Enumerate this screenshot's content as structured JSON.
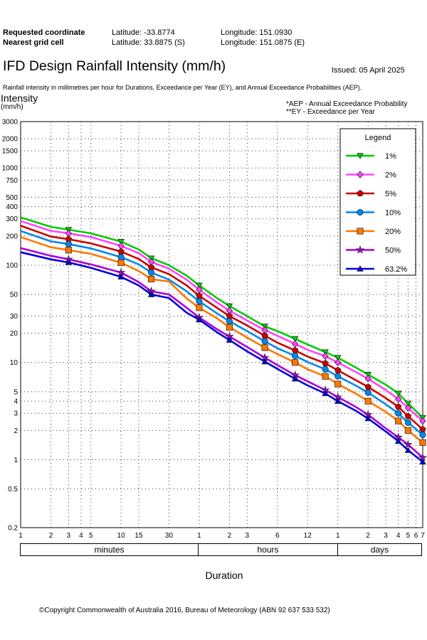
{
  "header": {
    "requested_label": "Requested coordinate",
    "requested_lat": "Latitude:  -33.8774",
    "requested_lon": "Longitude:  151.0930",
    "nearest_label": "Nearest grid cell",
    "nearest_lat": "Latitude:  33.8875 (S)",
    "nearest_lon": "Longitude:  151.0875 (E)"
  },
  "title": "IFD Design Rainfall Intensity (mm/h)",
  "issued": "Issued: 05 April 2025",
  "subtitle": "Rainfall intensity in millimetres per hour for Durations, Exceedance per Year (EY), and Annual Exceedance Probabilities (AEP).",
  "notes": [
    "*AEP - Annual Exceedance Probability",
    "**EY - Exceedance per Year"
  ],
  "duration_units": [
    "minutes",
    "hours",
    "days"
  ],
  "copyright": "©Copyright Commonwealth of Australia 2016, Bureau of Meteorology (ABN 92 637 533 532)",
  "chart_data": {
    "type": "line",
    "ylabel": "Intensity",
    "yunit": "(mm/h)",
    "xlabel": "Duration",
    "y_scale": "log",
    "x_scale": "log",
    "ylim": [
      0.2,
      3000
    ],
    "xlim_minutes": [
      1,
      10080
    ],
    "y_ticks": [
      3000,
      2000,
      1500,
      1000,
      750,
      500,
      400,
      300,
      200,
      100,
      50,
      30,
      20,
      10,
      5,
      4,
      3,
      2,
      1,
      0.5,
      0.2
    ],
    "x_ticks": [
      {
        "minutes": 1,
        "label": "1"
      },
      {
        "minutes": 2,
        "label": "2"
      },
      {
        "minutes": 3,
        "label": "3"
      },
      {
        "minutes": 4,
        "label": "4"
      },
      {
        "minutes": 5,
        "label": "5"
      },
      {
        "minutes": 10,
        "label": "10"
      },
      {
        "minutes": 15,
        "label": "15"
      },
      {
        "minutes": 30,
        "label": "30"
      },
      {
        "minutes": 60,
        "label": "1"
      },
      {
        "minutes": 120,
        "label": "2"
      },
      {
        "minutes": 180,
        "label": "3"
      },
      {
        "minutes": 360,
        "label": "6"
      },
      {
        "minutes": 720,
        "label": "12"
      },
      {
        "minutes": 1440,
        "label": "1"
      },
      {
        "minutes": 2880,
        "label": "2"
      },
      {
        "minutes": 4320,
        "label": "3"
      },
      {
        "minutes": 5760,
        "label": "4"
      },
      {
        "minutes": 7200,
        "label": "5"
      },
      {
        "minutes": 8640,
        "label": "6"
      },
      {
        "minutes": 10080,
        "label": "7"
      }
    ],
    "grid": true,
    "legend": {
      "title": "Legend",
      "position": "top-right"
    },
    "x_minutes": [
      1,
      2,
      3,
      5,
      10,
      15,
      20,
      30,
      45,
      60,
      90,
      120,
      180,
      270,
      360,
      540,
      720,
      1080,
      1440,
      2160,
      2880,
      4320,
      5760,
      7200,
      10080
    ],
    "marker_index": [
      2,
      4,
      6,
      9,
      11,
      13,
      15,
      17,
      18,
      20,
      22,
      23,
      24
    ],
    "series": [
      {
        "name": "1%",
        "color": "#00cc00",
        "marker": "triangle-down",
        "values": [
          310,
          248,
          232,
          213,
          175,
          145,
          118,
          100,
          78,
          62,
          46,
          38,
          30,
          23.5,
          21,
          17.5,
          15.3,
          12.8,
          11.2,
          8.9,
          7.5,
          5.9,
          4.8,
          3.8,
          2.7
        ]
      },
      {
        "name": "2%",
        "color": "#ff44ff",
        "marker": "diamond",
        "values": [
          285,
          226,
          213,
          195,
          158,
          133,
          108,
          92,
          71,
          56,
          41.5,
          34,
          27,
          21.5,
          18.8,
          15.5,
          13.5,
          11.6,
          10,
          8,
          6.8,
          5.2,
          4.2,
          3.4,
          2.5
        ]
      },
      {
        "name": "5%",
        "color": "#cc0000",
        "marker": "pentagon",
        "values": [
          255,
          197,
          185,
          168,
          138,
          116,
          95,
          81,
          62,
          48.5,
          36.5,
          30,
          24,
          18.8,
          16,
          13.3,
          11.5,
          9.8,
          8.3,
          6.6,
          5.6,
          4.3,
          3.5,
          2.8,
          2.05
        ]
      },
      {
        "name": "10%",
        "color": "#0088ee",
        "marker": "circle",
        "values": [
          225,
          176,
          165,
          149,
          121,
          102,
          84,
          71,
          54,
          42.5,
          32,
          26.5,
          21,
          16.5,
          14,
          11.7,
          10.1,
          8.5,
          7.2,
          5.8,
          4.9,
          3.7,
          3,
          2.4,
          1.8
        ]
      },
      {
        "name": "20%",
        "color": "#ff7700",
        "marker": "square",
        "values": [
          195,
          153,
          143,
          131,
          106,
          87,
          72,
          68,
          45.5,
          36.5,
          28.5,
          23,
          18,
          14.2,
          12.2,
          10,
          8.5,
          7.2,
          6,
          4.8,
          4,
          3.1,
          2.5,
          2,
          1.5
        ]
      },
      {
        "name": "50%",
        "color": "#aa00dd",
        "marker": "star",
        "values": [
          150,
          125,
          115,
          102,
          84,
          67,
          54,
          50,
          36.5,
          29,
          22,
          18.5,
          14.4,
          11.2,
          9.4,
          7.4,
          6.4,
          5.2,
          4.4,
          3.5,
          2.9,
          2.1,
          1.7,
          1.43,
          1.05
        ]
      },
      {
        "name": "63.2%",
        "color": "#0000dd",
        "marker": "triangle-up",
        "values": [
          136,
          115,
          107,
          94,
          76,
          62,
          50,
          46,
          32.5,
          27.5,
          20.5,
          17,
          13,
          10.2,
          8.6,
          6.8,
          5.8,
          4.8,
          4,
          3.2,
          2.65,
          1.95,
          1.55,
          1.25,
          0.95
        ]
      }
    ]
  }
}
